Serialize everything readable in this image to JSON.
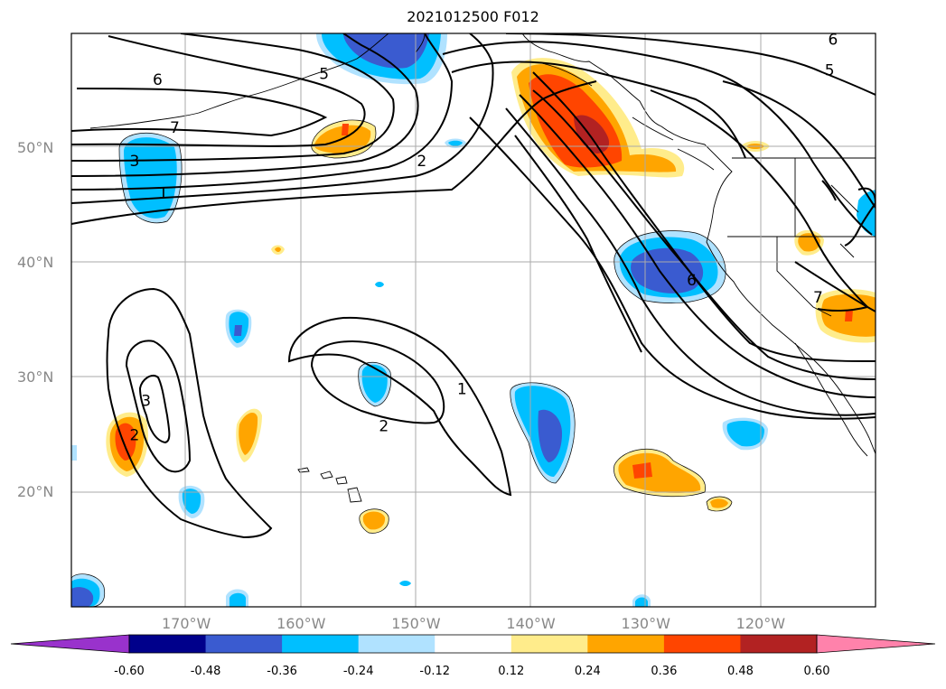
{
  "title": "2021012500 F012",
  "map": {
    "lat_labels": [
      {
        "text": "50°N",
        "lat": 50
      },
      {
        "text": "40°N",
        "lat": 40
      },
      {
        "text": "30°N",
        "lat": 30
      },
      {
        "text": "20°N",
        "lat": 20
      }
    ],
    "lon_labels": [
      {
        "text": "170°W",
        "lon": -170
      },
      {
        "text": "160°W",
        "lon": -160
      },
      {
        "text": "150°W",
        "lon": -150
      },
      {
        "text": "140°W",
        "lon": -140
      },
      {
        "text": "130°W",
        "lon": -130
      },
      {
        "text": "120°W",
        "lon": -120
      }
    ],
    "contour_labels": [
      {
        "text": "6",
        "lon": -172.5,
        "lat": 56.0
      },
      {
        "text": "5",
        "lon": -158.0,
        "lat": 56.5
      },
      {
        "text": "7",
        "lon": -171.0,
        "lat": 51.8
      },
      {
        "text": "3",
        "lon": -174.5,
        "lat": 48.9
      },
      {
        "text": "1",
        "lon": -172.0,
        "lat": 46.1
      },
      {
        "text": "2",
        "lon": -149.5,
        "lat": 48.9
      },
      {
        "text": "6",
        "lon": -126.0,
        "lat": 38.5
      },
      {
        "text": "7",
        "lon": -115.0,
        "lat": 37.0
      },
      {
        "text": "6",
        "lon": -113.7,
        "lat": 59.5
      },
      {
        "text": "5",
        "lon": -114.0,
        "lat": 56.8
      },
      {
        "text": "3",
        "lon": -173.5,
        "lat": 28.0
      },
      {
        "text": "1",
        "lon": -146.0,
        "lat": 29.0
      },
      {
        "text": "2",
        "lon": -152.8,
        "lat": 25.8
      },
      {
        "text": "2",
        "lon": -174.5,
        "lat": 25.0
      }
    ]
  },
  "colorbar": {
    "levels": [
      "-0.60",
      "-0.48",
      "-0.36",
      "-0.24",
      "-0.12",
      "0.12",
      "0.24",
      "0.36",
      "0.48",
      "0.60"
    ],
    "colors": [
      "#9932cc",
      "#00008b",
      "#3a5bd0",
      "#00bfff",
      "#b0e2ff",
      "#ffffff",
      "#ffec8b",
      "#ffa500",
      "#ff4500",
      "#b22222",
      "#ff82ab"
    ]
  }
}
